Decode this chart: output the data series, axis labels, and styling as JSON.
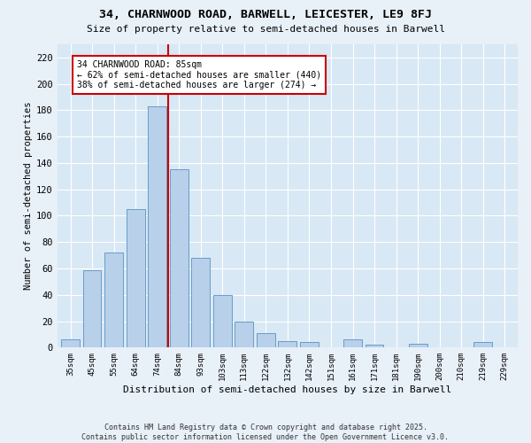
{
  "title": "34, CHARNWOOD ROAD, BARWELL, LEICESTER, LE9 8FJ",
  "subtitle": "Size of property relative to semi-detached houses in Barwell",
  "xlabel": "Distribution of semi-detached houses by size in Barwell",
  "ylabel": "Number of semi-detached properties",
  "bar_labels": [
    "35sqm",
    "45sqm",
    "55sqm",
    "64sqm",
    "74sqm",
    "84sqm",
    "93sqm",
    "103sqm",
    "113sqm",
    "122sqm",
    "132sqm",
    "142sqm",
    "151sqm",
    "161sqm",
    "171sqm",
    "181sqm",
    "190sqm",
    "200sqm",
    "210sqm",
    "219sqm",
    "229sqm"
  ],
  "bar_values": [
    6,
    59,
    72,
    105,
    183,
    135,
    68,
    40,
    20,
    11,
    5,
    4,
    0,
    6,
    2,
    0,
    3,
    0,
    0,
    4,
    0
  ],
  "bar_color": "#b8d0ea",
  "bar_edge_color": "#6a9dc8",
  "vline_index": 4,
  "annotation_text": "34 CHARNWOOD ROAD: 85sqm\n← 62% of semi-detached houses are smaller (440)\n38% of semi-detached houses are larger (274) →",
  "annotation_box_color": "#ffffff",
  "annotation_box_edge": "#cc0000",
  "vline_color": "#cc0000",
  "ylim": [
    0,
    230
  ],
  "yticks": [
    0,
    20,
    40,
    60,
    80,
    100,
    120,
    140,
    160,
    180,
    200,
    220
  ],
  "bg_color": "#d8e8f5",
  "fig_bg_color": "#e8f0f8",
  "footer": "Contains HM Land Registry data © Crown copyright and database right 2025.\nContains public sector information licensed under the Open Government Licence v3.0."
}
